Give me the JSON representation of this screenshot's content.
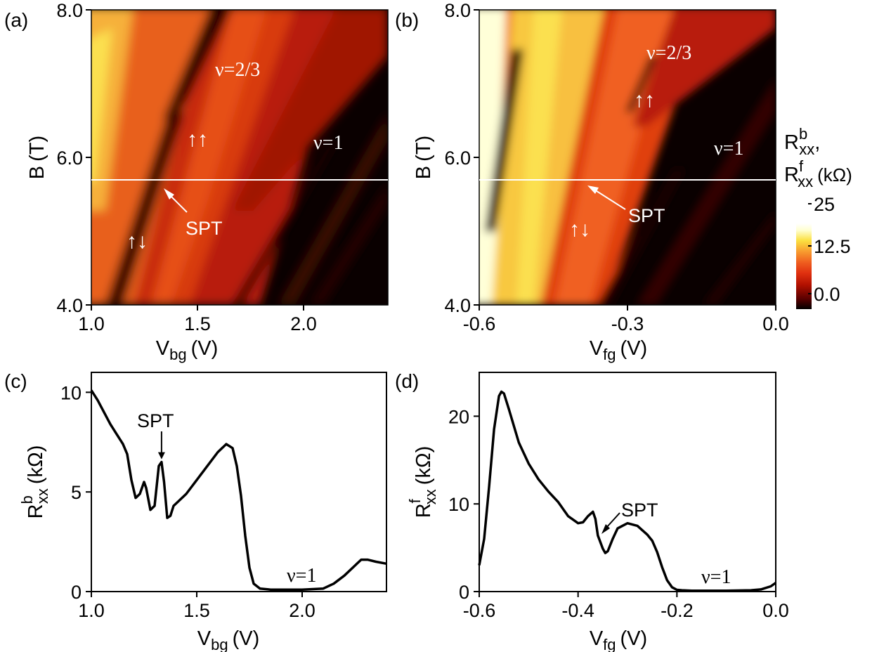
{
  "chart_data": [
    {
      "panel": "(a)",
      "type": "heatmap",
      "xlabel_main": "V",
      "xlabel_sub": "bg",
      "xlabel_unit": "(V)",
      "ylabel_main": "B",
      "ylabel_unit": "(T)",
      "x_ticks": [
        "1.0",
        "1.5",
        "2.0"
      ],
      "x_tick_values": [
        1.0,
        1.5,
        2.0
      ],
      "y_ticks": [
        "4.0",
        "6.0",
        "8.0"
      ],
      "y_tick_values": [
        4.0,
        6.0,
        8.0
      ],
      "xlim": [
        1.0,
        2.4
      ],
      "ylim": [
        4.0,
        8.0
      ],
      "cut_B": 5.7,
      "colormap": [
        "#000000",
        "#5a0000",
        "#b01000",
        "#e03010",
        "#f06020",
        "#f8a030",
        "#fbe040",
        "#ffffd0",
        "#ffffff"
      ],
      "annotations": {
        "nu23": "ν=2/3",
        "nu1": "ν=1",
        "spt": "SPT",
        "up_up": "↑↑",
        "up_down": "↑↓"
      }
    },
    {
      "panel": "(b)",
      "type": "heatmap",
      "xlabel_main": "V",
      "xlabel_sub": "fg",
      "xlabel_unit": "(V)",
      "ylabel_main": "B",
      "ylabel_unit": "(T)",
      "x_ticks": [
        "-0.6",
        "-0.3",
        "0.0"
      ],
      "x_tick_values": [
        -0.6,
        -0.3,
        0.0
      ],
      "y_ticks": [
        "4.0",
        "6.0",
        "8.0"
      ],
      "y_tick_values": [
        4.0,
        6.0,
        8.0
      ],
      "xlim": [
        -0.6,
        0.0
      ],
      "ylim": [
        4.0,
        8.0
      ],
      "cut_B": 5.7,
      "annotations": {
        "nu23": "ν=2/3",
        "nu1": "ν=1",
        "spt": "SPT",
        "up_up": "↑↑",
        "up_down": "↑↓"
      }
    },
    {
      "panel": "colorbar",
      "label_line1_main": "R",
      "label_line1_sup": "b",
      "label_line1_sub": "xx",
      "label_line1_end": ",",
      "label_line2_main": "R",
      "label_line2_sup": "f",
      "label_line2_sub": "xx",
      "label_line2_unit": "(kΩ)",
      "ticks": [
        "25",
        "12.5",
        "0.0"
      ],
      "tick_values": [
        25,
        12.5,
        0.0
      ],
      "range": [
        0,
        25
      ]
    },
    {
      "panel": "(c)",
      "type": "line",
      "xlabel_main": "V",
      "xlabel_sub": "bg",
      "xlabel_unit": "(V)",
      "ylabel_main": "R",
      "ylabel_sup": "b",
      "ylabel_sub": "xx",
      "ylabel_unit": "(kΩ)",
      "xlim": [
        1.0,
        2.4
      ],
      "ylim": [
        0,
        11
      ],
      "x_ticks": [
        "1.0",
        "1.5",
        "2.0"
      ],
      "x_tick_values": [
        1.0,
        1.5,
        2.0
      ],
      "y_ticks": [
        "0",
        "5",
        "10"
      ],
      "y_tick_values": [
        0,
        5,
        10
      ],
      "annotations": {
        "spt": "SPT",
        "nu1": "ν=1"
      },
      "spt_point": [
        1.333,
        6.5
      ],
      "series": [
        {
          "x": [
            1.0,
            1.03,
            1.06,
            1.09,
            1.12,
            1.15,
            1.17,
            1.19,
            1.21,
            1.23,
            1.25,
            1.26,
            1.28,
            1.3,
            1.32,
            1.333,
            1.345,
            1.36,
            1.375,
            1.39,
            1.41,
            1.45,
            1.5,
            1.55,
            1.6,
            1.64,
            1.67,
            1.69,
            1.71,
            1.73,
            1.75,
            1.77,
            1.8,
            1.85,
            1.9,
            2.0,
            2.1,
            2.15,
            2.2,
            2.25,
            2.28,
            2.31,
            2.35,
            2.4
          ],
          "y": [
            10.1,
            9.6,
            9.0,
            8.4,
            7.9,
            7.4,
            6.9,
            5.6,
            4.7,
            4.9,
            5.5,
            5.2,
            4.1,
            4.3,
            6.3,
            6.5,
            5.5,
            3.7,
            3.8,
            4.3,
            4.5,
            4.9,
            5.6,
            6.3,
            7.0,
            7.4,
            7.2,
            6.3,
            4.8,
            2.8,
            1.2,
            0.4,
            0.15,
            0.1,
            0.1,
            0.1,
            0.15,
            0.4,
            0.8,
            1.3,
            1.6,
            1.6,
            1.5,
            1.4
          ]
        }
      ]
    },
    {
      "panel": "(d)",
      "type": "line",
      "xlabel_main": "V",
      "xlabel_sub": "fg",
      "xlabel_unit": "(V)",
      "ylabel_main": "R",
      "ylabel_sup": "f",
      "ylabel_sub": "xx",
      "ylabel_unit": "(kΩ)",
      "xlim": [
        -0.6,
        0.0
      ],
      "ylim": [
        0,
        25
      ],
      "x_ticks": [
        "-0.6",
        "-0.4",
        "-0.2",
        "0.0"
      ],
      "x_tick_values": [
        -0.6,
        -0.4,
        -0.2,
        0.0
      ],
      "y_ticks": [
        "0",
        "10",
        "20"
      ],
      "y_tick_values": [
        0,
        10,
        20
      ],
      "annotations": {
        "spt": "SPT",
        "nu1": "ν=1"
      },
      "spt_point": [
        -0.368,
        9.1
      ],
      "series": [
        {
          "x": [
            -0.6,
            -0.59,
            -0.58,
            -0.57,
            -0.56,
            -0.555,
            -0.55,
            -0.54,
            -0.52,
            -0.5,
            -0.48,
            -0.46,
            -0.44,
            -0.42,
            -0.4,
            -0.39,
            -0.38,
            -0.37,
            -0.365,
            -0.36,
            -0.35,
            -0.345,
            -0.34,
            -0.33,
            -0.32,
            -0.3,
            -0.28,
            -0.26,
            -0.25,
            -0.24,
            -0.23,
            -0.22,
            -0.21,
            -0.2,
            -0.19,
            -0.17,
            -0.15,
            -0.1,
            -0.05,
            -0.03,
            -0.01,
            0.0
          ],
          "y": [
            3.0,
            6.0,
            12.0,
            18.5,
            22.3,
            22.8,
            22.6,
            20.8,
            17.0,
            14.6,
            12.8,
            11.4,
            10.2,
            8.6,
            7.8,
            7.9,
            8.6,
            9.1,
            8.3,
            6.4,
            4.9,
            4.4,
            4.6,
            6.0,
            7.2,
            7.8,
            7.5,
            6.5,
            5.8,
            4.5,
            2.8,
            1.3,
            0.5,
            0.2,
            0.15,
            0.1,
            0.1,
            0.1,
            0.15,
            0.25,
            0.6,
            1.0
          ]
        }
      ]
    }
  ]
}
